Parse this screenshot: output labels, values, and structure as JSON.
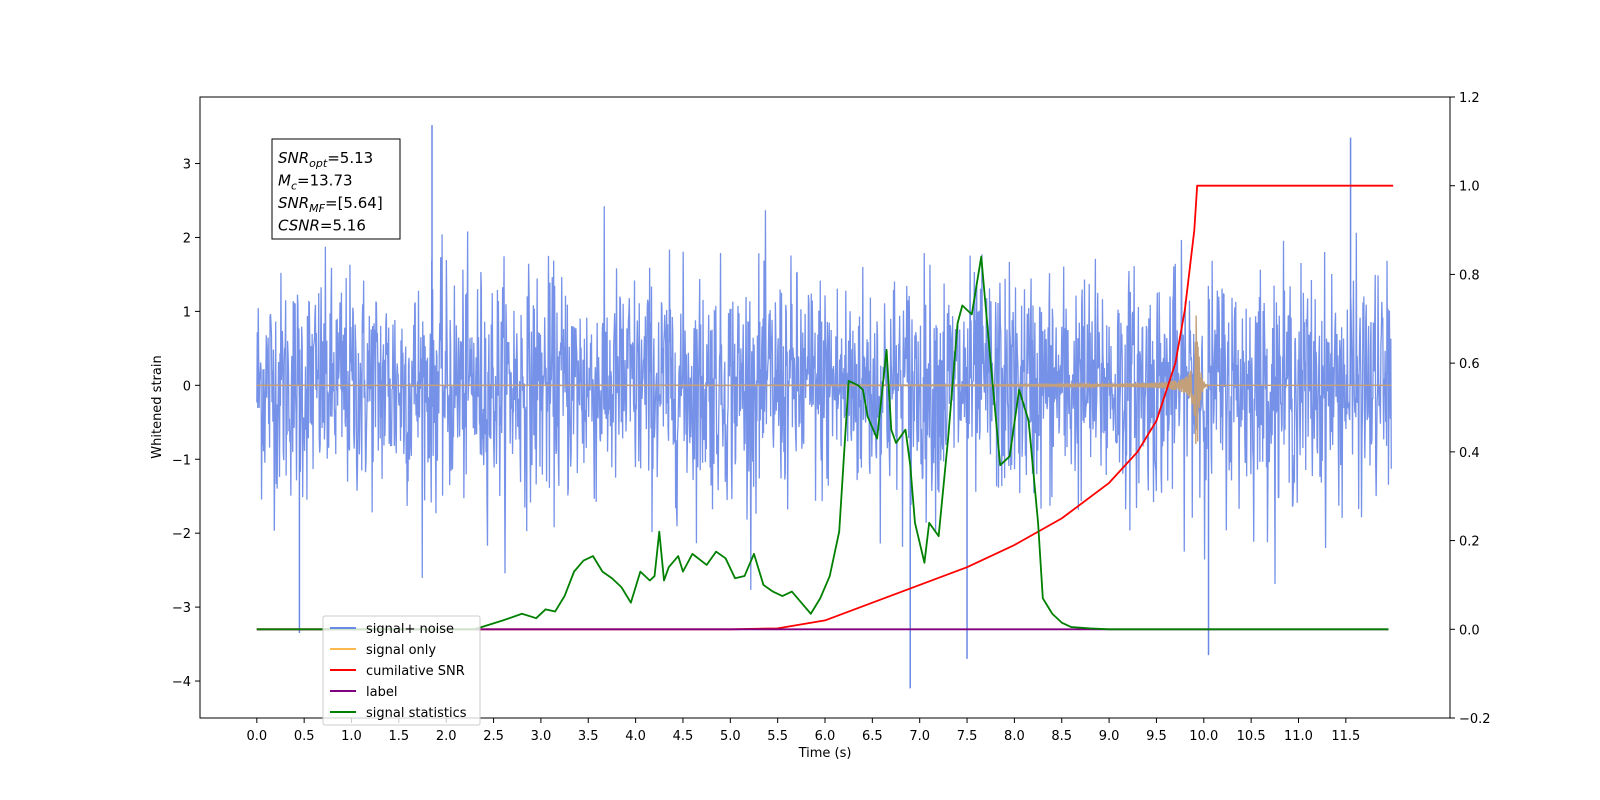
{
  "chart_data": {
    "type": "line",
    "xlabel": "Time (s)",
    "ylabel": "Whitened strain",
    "ylabel_right": "",
    "xlim": [
      -0.6,
      12.6
    ],
    "ylim": [
      -4.5,
      3.9
    ],
    "ylim_right": [
      -0.2,
      1.2
    ],
    "x_ticks": [
      "0.0",
      "0.5",
      "1.0",
      "1.5",
      "2.0",
      "2.5",
      "3.0",
      "3.5",
      "4.0",
      "4.5",
      "5.0",
      "5.5",
      "6.0",
      "6.5",
      "7.0",
      "7.5",
      "8.0",
      "8.5",
      "9.0",
      "9.5",
      "10.0",
      "10.5",
      "11.0",
      "11.5"
    ],
    "y_ticks_left": [
      -4,
      -3,
      -2,
      -1,
      0,
      1,
      2,
      3
    ],
    "y_ticks_right": [
      "−0.2",
      "0.0",
      "0.2",
      "0.4",
      "0.6",
      "0.8",
      "1.0",
      "1.2"
    ],
    "info_box": [
      {
        "base": "SNR",
        "sub": "opt",
        "value": "=5.13"
      },
      {
        "base": "M",
        "sub": "c",
        "value": "=13.73"
      },
      {
        "base": "SNR",
        "sub": "MF",
        "value": "=[5.64]"
      },
      {
        "base": "CSNR",
        "sub": "",
        "value": "=5.16"
      }
    ],
    "legend_position": "lower-left",
    "legend": [
      {
        "name": "signal+ noise",
        "color": "#6a89e6"
      },
      {
        "name": "signal only",
        "color": "#ffb84d"
      },
      {
        "name": "cumilative SNR",
        "color": "#ff0000"
      },
      {
        "name": "label",
        "color": "#800080"
      },
      {
        "name": "signal statistics",
        "color": "#008000"
      }
    ],
    "series": [
      {
        "name": "signal+ noise",
        "axis": "left",
        "color": "#6a89e6",
        "description_value": "whitened noisy strain, approx amplitude ±1.5 with spikes to ±3.5",
        "extremes": [
          [
            1.85,
            3.52
          ],
          [
            0.45,
            -3.35
          ],
          [
            6.9,
            -4.1
          ],
          [
            7.5,
            -3.7
          ],
          [
            10.05,
            -3.65
          ],
          [
            11.55,
            3.35
          ]
        ]
      },
      {
        "name": "signal only",
        "axis": "left",
        "color": "#c4a07a",
        "merger_time": 9.93,
        "peak_amplitude": 0.95
      },
      {
        "name": "cumilative SNR",
        "axis": "right",
        "color": "#ff0000",
        "x": [
          0.0,
          5.0,
          5.5,
          6.0,
          6.5,
          7.0,
          7.5,
          8.0,
          8.5,
          9.0,
          9.3,
          9.5,
          9.7,
          9.8,
          9.9,
          9.93,
          10.0,
          12.0
        ],
        "y": [
          0.0,
          0.0,
          0.002,
          0.02,
          0.06,
          0.1,
          0.14,
          0.19,
          0.25,
          0.33,
          0.4,
          0.47,
          0.6,
          0.72,
          0.9,
          1.0,
          1.0,
          1.0
        ]
      },
      {
        "name": "label",
        "axis": "right",
        "color": "#800080",
        "x": [
          0.0,
          11.95
        ],
        "y": [
          0.0,
          0.0
        ]
      },
      {
        "name": "signal statistics",
        "axis": "right",
        "color": "#008000",
        "x": [
          0.0,
          2.3,
          2.6,
          2.8,
          2.95,
          3.05,
          3.15,
          3.25,
          3.35,
          3.45,
          3.55,
          3.65,
          3.75,
          3.85,
          3.95,
          4.05,
          4.15,
          4.2,
          4.25,
          4.3,
          4.35,
          4.45,
          4.5,
          4.6,
          4.75,
          4.85,
          4.95,
          5.05,
          5.15,
          5.25,
          5.35,
          5.45,
          5.55,
          5.65,
          5.75,
          5.85,
          5.95,
          6.05,
          6.15,
          6.25,
          6.35,
          6.4,
          6.45,
          6.55,
          6.65,
          6.7,
          6.75,
          6.85,
          6.9,
          6.95,
          7.05,
          7.1,
          7.2,
          7.3,
          7.4,
          7.45,
          7.55,
          7.65,
          7.75,
          7.85,
          7.95,
          8.05,
          8.15,
          8.25,
          8.3,
          8.4,
          8.5,
          8.6,
          8.8,
          9.0,
          11.95
        ],
        "y": [
          0.0,
          0.0,
          0.02,
          0.035,
          0.025,
          0.045,
          0.04,
          0.075,
          0.13,
          0.155,
          0.165,
          0.13,
          0.115,
          0.095,
          0.06,
          0.13,
          0.11,
          0.12,
          0.22,
          0.11,
          0.14,
          0.165,
          0.13,
          0.17,
          0.145,
          0.175,
          0.16,
          0.115,
          0.12,
          0.17,
          0.1,
          0.085,
          0.075,
          0.085,
          0.06,
          0.035,
          0.07,
          0.12,
          0.22,
          0.56,
          0.55,
          0.54,
          0.48,
          0.43,
          0.63,
          0.45,
          0.42,
          0.45,
          0.37,
          0.24,
          0.15,
          0.24,
          0.21,
          0.43,
          0.69,
          0.73,
          0.71,
          0.84,
          0.6,
          0.37,
          0.39,
          0.54,
          0.47,
          0.24,
          0.07,
          0.035,
          0.015,
          0.005,
          0.002,
          0.0,
          0.0
        ]
      }
    ]
  }
}
